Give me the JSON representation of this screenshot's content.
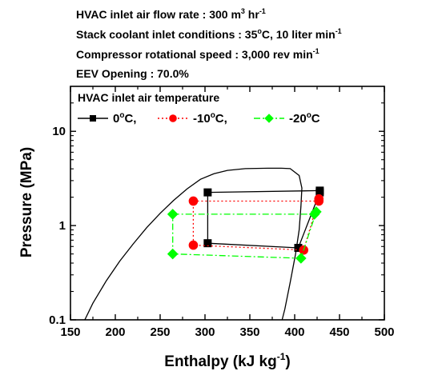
{
  "conditions": [
    {
      "text": "HVAC inlet air flow rate : 300 m",
      "sup": "3",
      "text2": " hr",
      "sup2": "-1"
    },
    {
      "text": "Stack coolant inlet conditions : 35",
      "sup": "o",
      "text2": "C, 10 liter min",
      "sup2": "-1"
    },
    {
      "text": "Compressor rotational speed : 3,000 rev min",
      "sup": "-1",
      "text2": "",
      "sup2": ""
    },
    {
      "text": "EEV Opening : 70.0%",
      "sup": "",
      "text2": "",
      "sup2": ""
    }
  ],
  "colors": {
    "s0": "#000000",
    "s10": "#ff0000",
    "s20": "#00ff00",
    "dome": "#000000"
  },
  "chart_data": {
    "type": "scatter",
    "xlabel": {
      "text": "Enthalpy (kJ kg",
      "sup": "-1",
      "text2": ")"
    },
    "ylabel": "Pressure (MPa)",
    "xlim": [
      150,
      500
    ],
    "ylim": [
      0.1,
      30
    ],
    "yscale": "log",
    "xticks": [
      "150",
      "200",
      "250",
      "300",
      "350",
      "400",
      "450",
      "500"
    ],
    "yticks": [
      {
        "value": 0.1,
        "label": "0.1"
      },
      {
        "value": 1,
        "label": "1"
      },
      {
        "value": 10,
        "label": "10"
      }
    ],
    "legend_title": "HVAC inlet air temperature",
    "legend_placement": "top-left",
    "series": [
      {
        "name": "0",
        "label_pre": "0",
        "label_sup": "o",
        "label_post": "C,",
        "color": "#000000",
        "marker": "square",
        "line": "solid",
        "points": [
          [
            303,
            2.25
          ],
          [
            428,
            2.35
          ],
          [
            428,
            2.25
          ],
          [
            404,
            0.58
          ],
          [
            303,
            0.65
          ],
          [
            303,
            2.25
          ]
        ]
      },
      {
        "name": "-10",
        "label_pre": "-10",
        "label_sup": "o",
        "label_post": "C,",
        "color": "#ff0000",
        "marker": "circle",
        "line": "dotted",
        "points": [
          [
            287,
            1.82
          ],
          [
            427,
            1.82
          ],
          [
            427,
            1.92
          ],
          [
            410,
            0.55
          ],
          [
            287,
            0.62
          ],
          [
            287,
            1.82
          ]
        ]
      },
      {
        "name": "-20",
        "label_pre": "-20",
        "label_sup": "o",
        "label_post": "C",
        "color": "#00ff00",
        "marker": "diamond",
        "line": "dashdot",
        "points": [
          [
            264,
            1.32
          ],
          [
            422,
            1.32
          ],
          [
            424,
            1.4
          ],
          [
            407,
            0.45
          ],
          [
            264,
            0.5
          ],
          [
            264,
            1.32
          ]
        ]
      }
    ],
    "saturation_dome": {
      "liquid": [
        [
          166,
          0.1
        ],
        [
          175,
          0.15
        ],
        [
          190,
          0.26
        ],
        [
          205,
          0.42
        ],
        [
          220,
          0.64
        ],
        [
          235,
          0.95
        ],
        [
          250,
          1.35
        ],
        [
          265,
          1.85
        ],
        [
          280,
          2.45
        ],
        [
          295,
          3.1
        ],
        [
          310,
          3.55
        ],
        [
          325,
          3.85
        ],
        [
          345,
          4.02
        ],
        [
          370,
          4.06
        ],
        [
          385,
          4.06
        ]
      ],
      "vapor": [
        [
          385,
          4.06
        ],
        [
          395,
          4.02
        ],
        [
          405,
          3.4
        ],
        [
          408,
          2.5
        ],
        [
          407,
          1.6
        ],
        [
          405,
          0.9
        ],
        [
          401,
          0.5
        ],
        [
          395,
          0.25
        ],
        [
          389,
          0.13
        ],
        [
          386,
          0.1
        ]
      ]
    }
  }
}
